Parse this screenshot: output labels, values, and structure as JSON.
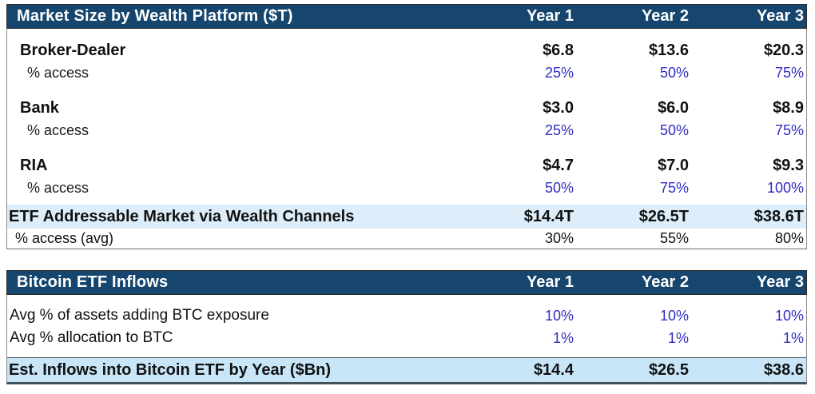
{
  "colors": {
    "header_bg": "#16466e",
    "total_row_bg": "#ddeefa",
    "est_row_bg": "#c9e6f8",
    "input_blue": "#2f2cc4"
  },
  "table1": {
    "title": "Market Size by Wealth Platform ($T)",
    "columns": [
      "Year 1",
      "Year 2",
      "Year 3"
    ],
    "rows": [
      {
        "label": "Broker-Dealer",
        "type": "platform",
        "values": [
          "$6.8",
          "$13.6",
          "$20.3"
        ]
      },
      {
        "label": "% access",
        "type": "access-input",
        "values": [
          "25%",
          "50%",
          "75%"
        ]
      },
      {
        "label": "Bank",
        "type": "platform",
        "values": [
          "$3.0",
          "$6.0",
          "$8.9"
        ]
      },
      {
        "label": "% access",
        "type": "access-input",
        "values": [
          "25%",
          "50%",
          "75%"
        ]
      },
      {
        "label": "RIA",
        "type": "platform",
        "values": [
          "$4.7",
          "$7.0",
          "$9.3"
        ]
      },
      {
        "label": "% access",
        "type": "access-input",
        "values": [
          "50%",
          "75%",
          "100%"
        ]
      },
      {
        "label": "ETF Addressable Market via Wealth Channels",
        "type": "total",
        "values": [
          "$14.4T",
          "$26.5T",
          "$38.6T"
        ]
      },
      {
        "label": "% access (avg)",
        "type": "average",
        "values": [
          "30%",
          "55%",
          "80%"
        ]
      }
    ]
  },
  "table2": {
    "title": "Bitcoin ETF Inflows",
    "columns": [
      "Year 1",
      "Year 2",
      "Year 3"
    ],
    "rows": [
      {
        "label": "Avg % of assets adding BTC exposure",
        "type": "input",
        "values": [
          "10%",
          "10%",
          "10%"
        ]
      },
      {
        "label": "Avg % allocation to BTC",
        "type": "input",
        "values": [
          "1%",
          "1%",
          "1%"
        ]
      },
      {
        "label": "Est. Inflows into Bitcoin ETF by Year ($Bn)",
        "type": "total",
        "values": [
          "$14.4",
          "$26.5",
          "$38.6"
        ]
      }
    ]
  },
  "chart_data": [
    {
      "type": "table",
      "title": "Market Size by Wealth Platform ($T)",
      "columns": [
        "Year 1",
        "Year 2",
        "Year 3"
      ],
      "rows": [
        {
          "label": "Broker-Dealer ($T)",
          "values": [
            6.8,
            13.6,
            20.3
          ]
        },
        {
          "label": "Broker-Dealer % access",
          "values": [
            "25%",
            "50%",
            "75%"
          ]
        },
        {
          "label": "Bank ($T)",
          "values": [
            3.0,
            6.0,
            8.9
          ]
        },
        {
          "label": "Bank % access",
          "values": [
            "25%",
            "50%",
            "75%"
          ]
        },
        {
          "label": "RIA ($T)",
          "values": [
            4.7,
            7.0,
            9.3
          ]
        },
        {
          "label": "RIA % access",
          "values": [
            "50%",
            "75%",
            "100%"
          ]
        },
        {
          "label": "ETF Addressable Market via Wealth Channels ($T)",
          "values": [
            14.4,
            26.5,
            38.6
          ]
        },
        {
          "label": "% access (avg)",
          "values": [
            "30%",
            "55%",
            "80%"
          ]
        }
      ]
    },
    {
      "type": "table",
      "title": "Bitcoin ETF Inflows",
      "columns": [
        "Year 1",
        "Year 2",
        "Year 3"
      ],
      "rows": [
        {
          "label": "Avg % of assets adding BTC exposure",
          "values": [
            "10%",
            "10%",
            "10%"
          ]
        },
        {
          "label": "Avg % allocation to BTC",
          "values": [
            "1%",
            "1%",
            "1%"
          ]
        },
        {
          "label": "Est. Inflows into Bitcoin ETF by Year ($Bn)",
          "values": [
            14.4,
            26.5,
            38.6
          ]
        }
      ]
    }
  ]
}
